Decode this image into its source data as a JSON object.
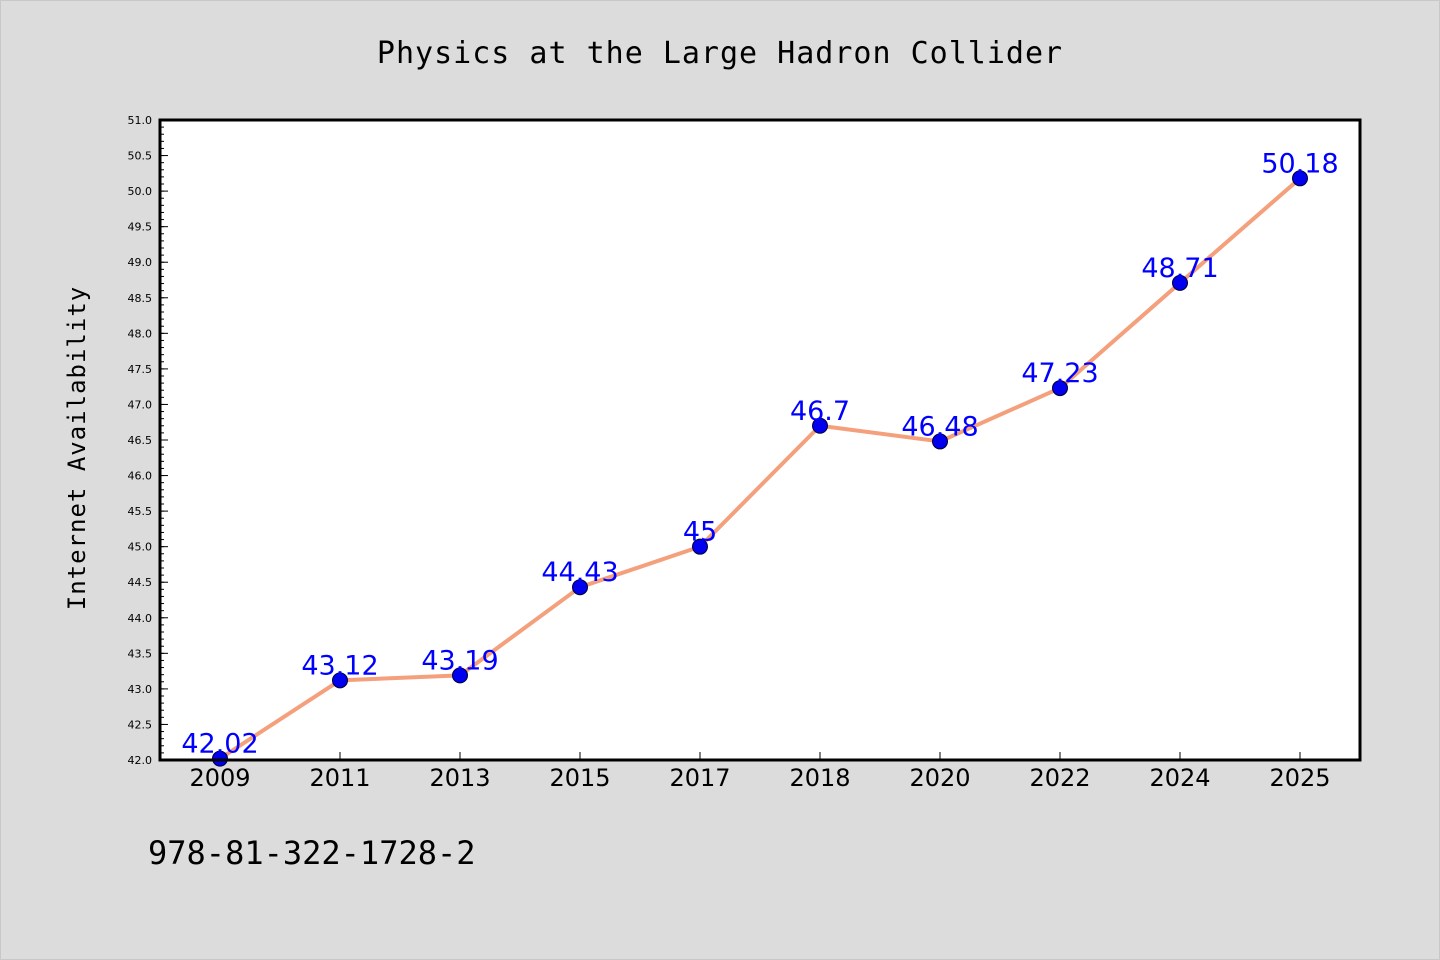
{
  "chart_data": {
    "type": "line",
    "title": "Physics at the Large Hadron Collider",
    "xlabel": "",
    "ylabel": "Internet Availability",
    "categories": [
      "2009",
      "2011",
      "2013",
      "2015",
      "2017",
      "2018",
      "2020",
      "2022",
      "2024",
      "2025"
    ],
    "values": [
      42.02,
      43.12,
      43.19,
      44.43,
      45,
      46.7,
      46.48,
      47.23,
      48.71,
      50.18
    ],
    "data_labels": [
      "42.02",
      "43.12",
      "43.19",
      "44.43",
      "45",
      "46.7",
      "46.48",
      "47.23",
      "48.71",
      "50.18"
    ],
    "ylim": [
      42.0,
      51.0
    ],
    "yticks": [
      "42.0",
      "42.5",
      "43.0",
      "43.5",
      "44.0",
      "44.5",
      "45.0",
      "45.5",
      "46.0",
      "46.5",
      "47.0",
      "47.5",
      "48.0",
      "48.5",
      "49.0",
      "49.5",
      "50.0",
      "50.5",
      "51.0"
    ],
    "grid": false,
    "line_color": "#f4a07c",
    "marker_color": "#0000ee",
    "label_color": "#0000ff"
  },
  "footer": {
    "text": "978-81-322-1728-2"
  },
  "colors": {
    "background": "#dcdcdc",
    "plot_background": "#ffffff"
  }
}
